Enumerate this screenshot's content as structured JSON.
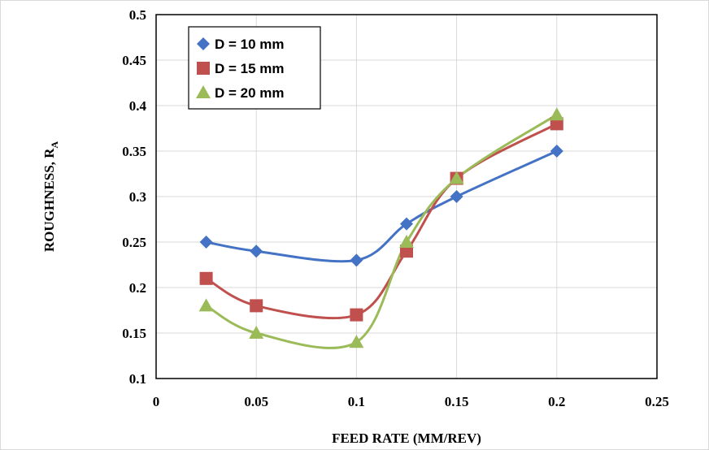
{
  "chart_data": {
    "type": "line",
    "xlabel": "FEED RATE (MM/REV)",
    "ylabel": "ROUGHNESS, R",
    "ylabel_subscript": "A",
    "xlim": [
      0,
      0.25
    ],
    "ylim": [
      0.1,
      0.5
    ],
    "x_ticks": [
      "0",
      "0.05",
      "0.1",
      "0.15",
      "0.2",
      "0.25"
    ],
    "y_ticks": [
      "0.1",
      "0.15",
      "0.2",
      "0.25",
      "0.3",
      "0.35",
      "0.4",
      "0.45",
      "0.5"
    ],
    "grid": true,
    "legend_position": "top-left",
    "x": [
      0.025,
      0.05,
      0.1,
      0.125,
      0.15,
      0.2
    ],
    "series": [
      {
        "name": "D = 10 mm",
        "values": [
          0.25,
          0.24,
          0.23,
          0.27,
          0.3,
          0.35
        ],
        "color": "#4472c4",
        "marker": "diamond"
      },
      {
        "name": "D = 15 mm",
        "values": [
          0.21,
          0.18,
          0.17,
          0.24,
          0.32,
          0.38
        ],
        "color": "#c0504d",
        "marker": "square"
      },
      {
        "name": "D = 20 mm",
        "values": [
          0.18,
          0.15,
          0.14,
          0.25,
          0.32,
          0.39
        ],
        "color": "#9bbb59",
        "marker": "triangle"
      }
    ]
  }
}
